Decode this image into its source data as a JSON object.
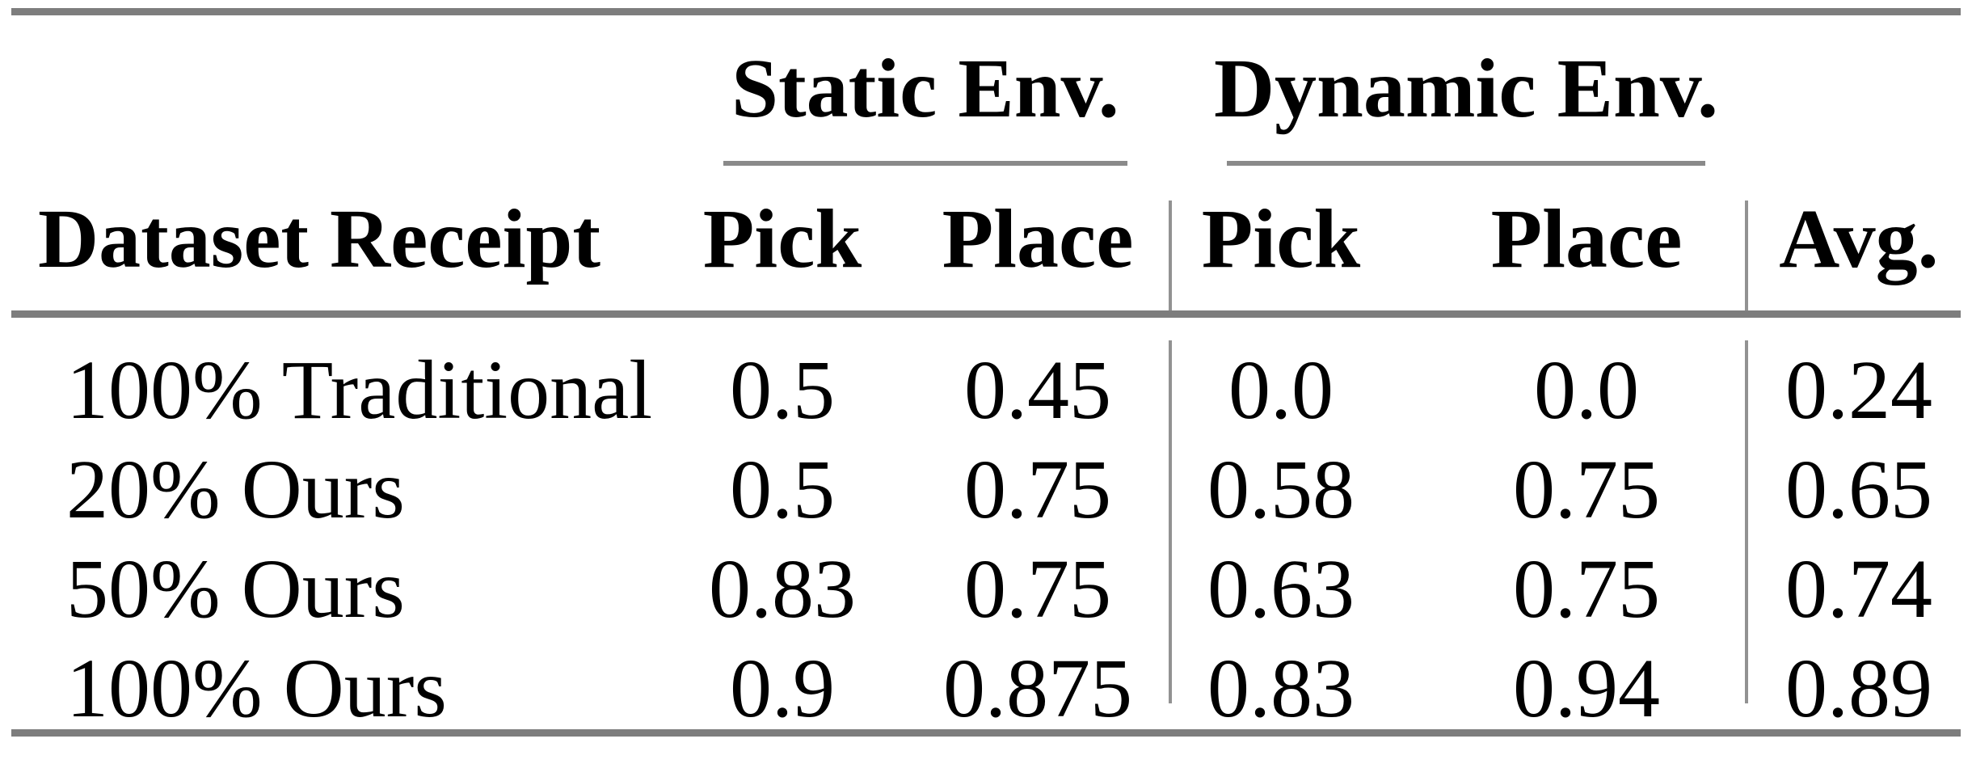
{
  "table": {
    "row_header_label": "Dataset Receipt",
    "groups": [
      {
        "label": "Static Env.",
        "columns": [
          "Pick",
          "Place"
        ]
      },
      {
        "label": "Dynamic Env.",
        "columns": [
          "Pick",
          "Place"
        ]
      }
    ],
    "avg_label": "Avg.",
    "rows": [
      {
        "label": "100% Traditional",
        "static_pick": "0.5",
        "static_place": "0.45",
        "dynamic_pick": "0.0",
        "dynamic_place": "0.0",
        "avg": "0.24"
      },
      {
        "label": "20% Ours",
        "static_pick": "0.5",
        "static_place": "0.75",
        "dynamic_pick": "0.58",
        "dynamic_place": "0.75",
        "avg": "0.65"
      },
      {
        "label": "50% Ours",
        "static_pick": "0.83",
        "static_place": "0.75",
        "dynamic_pick": "0.63",
        "dynamic_place": "0.75",
        "avg": "0.74"
      },
      {
        "label": "100% Ours",
        "static_pick": "0.9",
        "static_place": "0.875",
        "dynamic_pick": "0.83",
        "dynamic_place": "0.94",
        "avg": "0.89"
      }
    ]
  },
  "colors": {
    "background": "#ffffff",
    "text": "#000000",
    "heavy_rule": "#7d7d7d",
    "light_rule": "#8a8a8a",
    "vertical_rule": "#929292"
  }
}
